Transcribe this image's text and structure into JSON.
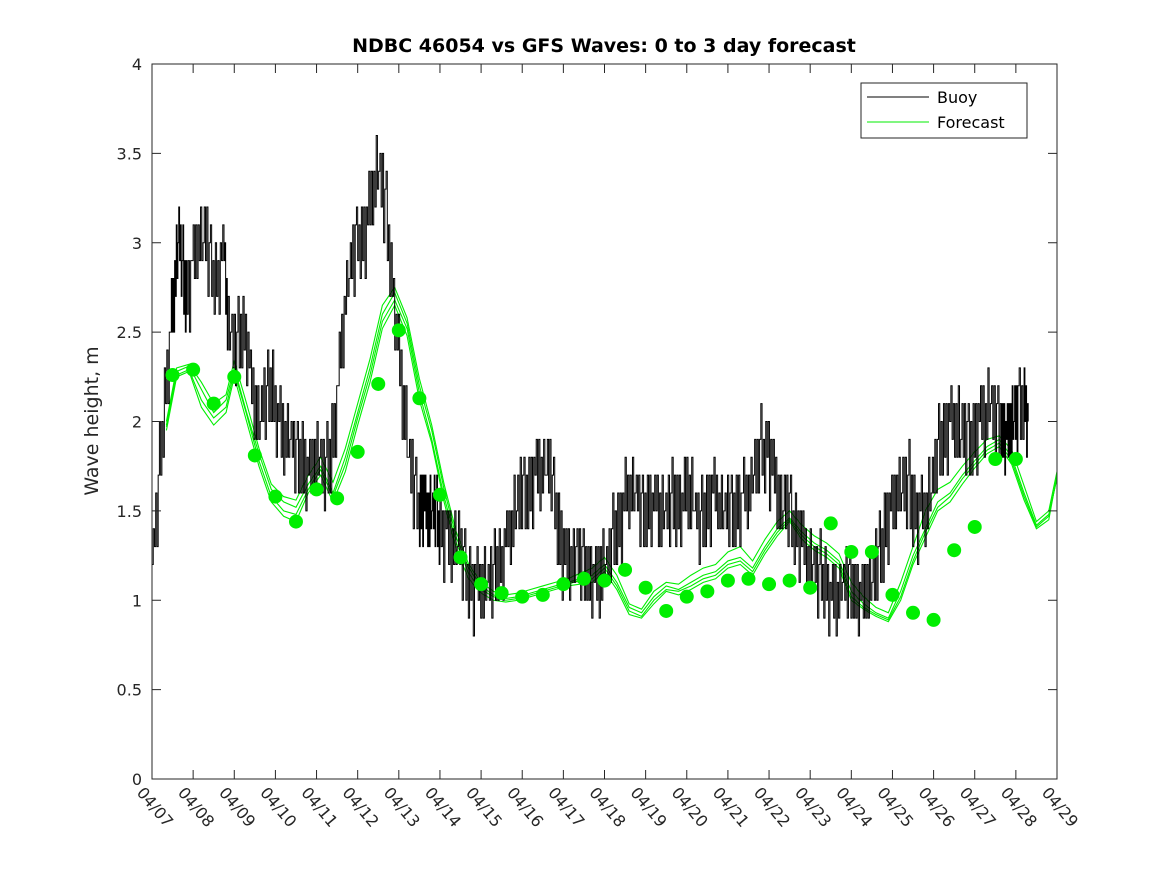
{
  "chart_data": {
    "type": "line",
    "title": "NDBC 46054 vs GFS Waves: 0 to 3 day forecast",
    "xlabel": "",
    "ylabel": "Wave height, m",
    "xlim": [
      0,
      22
    ],
    "ylim": [
      0,
      4
    ],
    "yticks": [
      0,
      0.5,
      1,
      1.5,
      2,
      2.5,
      3,
      3.5,
      4
    ],
    "ytick_labels": [
      "0",
      "0.5",
      "1",
      "1.5",
      "2",
      "2.5",
      "3",
      "3.5",
      "4"
    ],
    "xtick_labels": [
      "04/07",
      "04/08",
      "04/09",
      "04/10",
      "04/11",
      "04/12",
      "04/13",
      "04/14",
      "04/15",
      "04/16",
      "04/17",
      "04/18",
      "04/19",
      "04/20",
      "04/21",
      "04/22",
      "04/23",
      "04/24",
      "04/25",
      "04/26",
      "04/27",
      "04/28",
      "04/29"
    ],
    "grid": false,
    "legend": {
      "position": "top-right",
      "entries": [
        "Buoy",
        "Forecast"
      ]
    },
    "colors": {
      "buoy": "#000000",
      "forecast": "#00ee00",
      "axis": "#262626"
    },
    "buoy": {
      "name": "Buoy",
      "x": [
        0.0,
        0.15,
        0.3,
        0.45,
        0.55,
        0.65,
        0.75,
        0.85,
        1.0,
        1.15,
        1.3,
        1.45,
        1.6,
        1.75,
        1.85,
        2.0,
        2.15,
        2.3,
        2.45,
        2.6,
        2.75,
        2.9,
        3.05,
        3.2,
        3.35,
        3.5,
        3.65,
        3.8,
        3.95,
        4.1,
        4.25,
        4.4,
        4.55,
        4.7,
        4.85,
        5.0,
        5.15,
        5.3,
        5.45,
        5.6,
        5.75,
        5.9,
        6.05,
        6.2,
        6.35,
        6.5,
        6.6,
        6.7,
        6.8,
        6.9,
        7.0,
        7.15,
        7.3,
        7.45,
        7.6,
        7.75,
        7.9,
        8.05,
        8.2,
        8.35,
        8.5,
        8.65,
        8.8,
        8.95,
        9.1,
        9.25,
        9.4,
        9.55,
        9.7,
        9.85,
        10.0,
        10.15,
        10.3,
        10.45,
        10.6,
        10.75,
        10.9,
        11.05,
        11.2,
        11.35,
        11.5,
        11.65,
        11.8,
        11.95,
        12.1,
        12.25,
        12.4,
        12.55,
        12.7,
        12.85,
        13.0,
        13.15,
        13.3,
        13.45,
        13.6,
        13.75,
        13.9,
        14.05,
        14.2,
        14.35,
        14.5,
        14.65,
        14.8,
        14.95,
        15.1,
        15.25,
        15.4,
        15.55,
        15.7,
        15.85,
        16.0,
        16.15,
        16.3,
        16.45,
        16.6,
        16.75,
        16.9,
        17.05,
        17.2,
        17.35,
        17.5,
        17.65,
        17.8,
        17.95,
        18.1,
        18.25,
        18.4,
        18.55,
        18.7,
        18.85,
        19.0,
        19.15,
        19.3,
        19.45,
        19.6,
        19.75,
        19.9,
        20.05,
        20.2,
        20.35,
        20.5,
        20.65,
        20.75,
        20.85,
        20.95,
        21.05,
        21.2,
        21.3
      ],
      "values": [
        1.2,
        1.6,
        2.1,
        2.5,
        2.8,
        3.0,
        2.8,
        2.7,
        2.9,
        3.0,
        3.0,
        2.85,
        2.8,
        2.95,
        2.5,
        2.4,
        2.5,
        2.45,
        2.1,
        2.0,
        2.1,
        2.2,
        2.0,
        1.9,
        1.9,
        1.8,
        1.75,
        1.7,
        1.8,
        1.75,
        1.7,
        1.9,
        2.3,
        2.7,
        2.9,
        3.0,
        3.0,
        3.2,
        3.4,
        3.3,
        3.0,
        2.6,
        2.2,
        1.9,
        1.6,
        1.5,
        1.55,
        1.45,
        1.5,
        1.45,
        1.4,
        1.35,
        1.3,
        1.3,
        1.15,
        1.05,
        1.1,
        1.05,
        1.1,
        1.15,
        1.2,
        1.35,
        1.5,
        1.55,
        1.6,
        1.65,
        1.7,
        1.75,
        1.65,
        1.4,
        1.25,
        1.2,
        1.25,
        1.2,
        1.15,
        1.1,
        1.15,
        1.2,
        1.3,
        1.45,
        1.55,
        1.6,
        1.55,
        1.45,
        1.5,
        1.55,
        1.45,
        1.5,
        1.55,
        1.5,
        1.6,
        1.55,
        1.4,
        1.5,
        1.6,
        1.55,
        1.5,
        1.45,
        1.5,
        1.55,
        1.6,
        1.7,
        1.8,
        1.85,
        1.7,
        1.55,
        1.5,
        1.45,
        1.4,
        1.3,
        1.2,
        1.15,
        1.1,
        1.05,
        1.0,
        1.05,
        1.1,
        1.05,
        1.0,
        1.05,
        1.1,
        1.2,
        1.35,
        1.5,
        1.6,
        1.65,
        1.6,
        1.5,
        1.45,
        1.55,
        1.7,
        1.85,
        1.95,
        2.0,
        1.95,
        1.9,
        1.85,
        1.95,
        2.0,
        2.1,
        2.0,
        1.95,
        1.9,
        1.95,
        2.0,
        2.05,
        2.1,
        2.0
      ],
      "noise": [
        0,
        0.15,
        -0.1,
        0.2,
        -0.2,
        0.1,
        0.25,
        -0.15,
        0.1,
        -0.2,
        0.2,
        -0.1,
        0.15,
        -0.25,
        0.1,
        0,
        0.2,
        -0.1,
        0.15,
        -0.2,
        0.1,
        -0.15,
        0.2,
        -0.1
      ]
    },
    "forecast_runs": [
      {
        "name": "Forecast",
        "x": [
          0.35,
          0.6,
          0.9,
          1.2,
          1.5,
          1.8,
          2.0,
          2.3,
          2.6,
          2.9,
          3.2,
          3.5,
          3.8,
          4.1,
          4.4,
          4.7,
          5.0,
          5.3,
          5.6,
          5.9,
          6.2,
          6.5,
          6.8,
          7.1,
          7.4,
          7.7,
          8.0,
          8.3,
          8.6,
          8.9,
          9.2,
          9.5,
          9.8,
          10.1,
          10.4,
          10.7,
          11.0,
          11.3,
          11.6,
          11.9,
          12.2,
          12.5,
          12.8,
          13.1,
          13.4,
          13.7,
          14.0,
          14.3,
          14.6,
          14.9,
          15.2,
          15.5,
          15.8,
          16.1,
          16.4,
          16.7,
          17.0,
          17.3,
          17.6,
          17.9,
          18.2,
          18.5,
          18.8,
          19.1,
          19.4,
          19.7,
          20.0,
          20.3,
          20.6,
          20.9,
          21.2,
          21.5,
          21.8,
          22.0
        ],
        "values": [
          1.98,
          2.28,
          2.31,
          2.18,
          2.05,
          2.12,
          2.3,
          2.05,
          1.82,
          1.62,
          1.55,
          1.52,
          1.65,
          1.75,
          1.6,
          1.8,
          2.05,
          2.3,
          2.6,
          2.72,
          2.55,
          2.2,
          1.95,
          1.62,
          1.35,
          1.18,
          1.08,
          1.03,
          1.01,
          1.02,
          1.04,
          1.06,
          1.08,
          1.1,
          1.12,
          1.14,
          1.2,
          1.1,
          0.96,
          0.93,
          1.02,
          1.08,
          1.06,
          1.1,
          1.14,
          1.16,
          1.22,
          1.24,
          1.18,
          1.3,
          1.4,
          1.46,
          1.38,
          1.32,
          1.28,
          1.22,
          1.05,
          0.98,
          0.93,
          0.9,
          1.05,
          1.25,
          1.4,
          1.55,
          1.6,
          1.7,
          1.78,
          1.86,
          1.9,
          1.8,
          1.6,
          1.42,
          1.48,
          1.68
        ]
      },
      {
        "name": "Forecast",
        "x": [
          0.35,
          0.6,
          0.9,
          1.2,
          1.5,
          1.8,
          2.0,
          2.3,
          2.6,
          2.9,
          3.2,
          3.5,
          3.8,
          4.1,
          4.4,
          4.7,
          5.0,
          5.3,
          5.6,
          5.9,
          6.2,
          6.5,
          6.8,
          7.1,
          7.4,
          7.7,
          8.0,
          8.3,
          8.6,
          8.9,
          9.2,
          9.5,
          9.8,
          10.1,
          10.4,
          10.7,
          11.0,
          11.3,
          11.6,
          11.9,
          12.2,
          12.5,
          12.8,
          13.1,
          13.4,
          13.7,
          14.0,
          14.3,
          14.6,
          14.9,
          15.2,
          15.5,
          15.8,
          16.1,
          16.4,
          16.7,
          17.0,
          17.3,
          17.6,
          17.9,
          18.2,
          18.5,
          18.8,
          19.1,
          19.4,
          19.7,
          20.0,
          20.3,
          20.6,
          20.9,
          21.2,
          21.5,
          21.8,
          22.0
        ],
        "values": [
          1.95,
          2.25,
          2.28,
          2.08,
          1.98,
          2.05,
          2.25,
          2.0,
          1.75,
          1.55,
          1.47,
          1.44,
          1.6,
          1.7,
          1.55,
          1.72,
          1.98,
          2.22,
          2.52,
          2.65,
          2.48,
          2.12,
          1.88,
          1.55,
          1.28,
          1.12,
          1.04,
          1.0,
          0.99,
          1.0,
          1.02,
          1.04,
          1.06,
          1.08,
          1.09,
          1.1,
          1.16,
          1.06,
          0.92,
          0.9,
          0.98,
          1.05,
          1.03,
          1.06,
          1.1,
          1.12,
          1.18,
          1.2,
          1.14,
          1.26,
          1.36,
          1.44,
          1.34,
          1.28,
          1.24,
          1.18,
          1.0,
          0.95,
          0.91,
          0.88,
          1.0,
          1.2,
          1.35,
          1.5,
          1.55,
          1.65,
          1.74,
          1.82,
          1.86,
          1.76,
          1.56,
          1.4,
          1.45,
          1.7
        ]
      },
      {
        "name": "Forecast",
        "x": [
          0.35,
          0.6,
          0.9,
          1.2,
          1.5,
          1.8,
          2.0,
          2.3,
          2.6,
          2.9,
          3.2,
          3.5,
          3.8,
          4.1,
          4.4,
          4.7,
          5.0,
          5.3,
          5.6,
          5.9,
          6.2,
          6.5,
          6.8,
          7.1,
          7.4,
          7.7,
          8.0,
          8.3,
          8.6,
          8.9,
          9.2,
          9.5,
          9.8,
          10.1,
          10.4,
          10.7,
          11.0,
          11.3,
          11.6,
          11.9,
          12.2,
          12.5,
          12.8,
          13.1,
          13.4,
          13.7,
          14.0,
          14.3,
          14.6,
          14.9,
          15.2,
          15.5,
          15.8,
          16.1,
          16.4,
          16.7,
          17.0,
          17.3,
          17.6,
          17.9,
          18.2,
          18.5,
          18.8,
          19.1,
          19.4,
          19.7,
          20.0,
          20.3,
          20.6,
          20.9,
          21.2,
          21.5,
          21.8,
          22.0
        ],
        "values": [
          2.0,
          2.3,
          2.32,
          2.22,
          2.1,
          2.15,
          2.34,
          2.1,
          1.85,
          1.65,
          1.58,
          1.56,
          1.7,
          1.8,
          1.66,
          1.85,
          2.1,
          2.35,
          2.65,
          2.75,
          2.58,
          2.24,
          1.98,
          1.65,
          1.38,
          1.2,
          1.1,
          1.05,
          1.03,
          1.04,
          1.06,
          1.08,
          1.1,
          1.12,
          1.15,
          1.18,
          1.24,
          1.14,
          0.98,
          0.95,
          1.05,
          1.1,
          1.09,
          1.14,
          1.18,
          1.2,
          1.27,
          1.3,
          1.22,
          1.34,
          1.44,
          1.5,
          1.42,
          1.36,
          1.32,
          1.26,
          1.1,
          1.02,
          0.96,
          0.93,
          1.1,
          1.3,
          1.5,
          1.62,
          1.66,
          1.75,
          1.83,
          1.9,
          1.92,
          1.84,
          1.64,
          1.44,
          1.5,
          1.72
        ]
      },
      {
        "name": "Forecast",
        "x": [
          0.35,
          0.6,
          0.9,
          1.2,
          1.5,
          1.8,
          2.0,
          2.3,
          2.6,
          2.9,
          3.2,
          3.5,
          3.8,
          4.1,
          4.4,
          4.7,
          5.0,
          5.3,
          5.6,
          5.9,
          6.2,
          6.5,
          6.8,
          7.1,
          7.4,
          7.7,
          8.0,
          8.3,
          8.6,
          8.9,
          9.2,
          9.5,
          9.8,
          10.1,
          10.4,
          10.7,
          11.0,
          11.3,
          11.6,
          11.9,
          12.2,
          12.5,
          12.8,
          13.1,
          13.4,
          13.7,
          14.0,
          14.3,
          14.6,
          14.9,
          15.2,
          15.5,
          15.8,
          16.1,
          16.4,
          16.7,
          17.0,
          17.3,
          17.6,
          17.9,
          18.2,
          18.5,
          18.8,
          19.1,
          19.4,
          19.7,
          20.0,
          20.3,
          20.6,
          20.9,
          21.2,
          21.5,
          21.8,
          22.0
        ],
        "values": [
          1.97,
          2.26,
          2.29,
          2.12,
          2.02,
          2.08,
          2.28,
          2.04,
          1.78,
          1.58,
          1.5,
          1.48,
          1.62,
          1.73,
          1.58,
          1.76,
          2.02,
          2.26,
          2.56,
          2.68,
          2.52,
          2.16,
          1.9,
          1.58,
          1.32,
          1.15,
          1.06,
          1.02,
          1.0,
          1.01,
          1.03,
          1.05,
          1.07,
          1.09,
          1.11,
          1.12,
          1.18,
          1.08,
          0.94,
          0.91,
          1.0,
          1.06,
          1.05,
          1.08,
          1.12,
          1.14,
          1.2,
          1.22,
          1.16,
          1.28,
          1.38,
          1.45,
          1.36,
          1.3,
          1.26,
          1.2,
          1.02,
          0.96,
          0.92,
          0.89,
          1.02,
          1.22,
          1.38,
          1.52,
          1.58,
          1.68,
          1.76,
          1.84,
          1.88,
          1.78,
          1.58,
          1.41,
          1.47,
          1.69
        ]
      }
    ],
    "forecast_points": {
      "x": [
        0.5,
        1.0,
        1.5,
        2.0,
        2.5,
        3.0,
        3.5,
        4.0,
        4.5,
        5.0,
        5.5,
        6.0,
        6.5,
        7.0,
        7.5,
        8.0,
        8.5,
        9.0,
        9.5,
        10.0,
        10.5,
        11.0,
        11.5,
        12.0,
        12.5,
        13.0,
        13.5,
        14.0,
        14.5,
        15.0,
        15.5,
        16.0,
        16.5,
        17.0,
        17.5,
        18.0,
        18.5,
        19.0,
        19.5,
        20.0,
        20.5,
        21.0
      ],
      "values": [
        2.26,
        2.29,
        2.1,
        2.25,
        1.81,
        1.58,
        1.44,
        1.62,
        1.57,
        1.83,
        2.21,
        2.51,
        2.13,
        1.59,
        1.24,
        1.09,
        1.04,
        1.02,
        1.03,
        1.09,
        1.12,
        1.11,
        1.17,
        1.07,
        0.94,
        1.02,
        1.05,
        1.11,
        1.12,
        1.09,
        1.11,
        1.07,
        1.43,
        1.27,
        1.27,
        1.03,
        0.93,
        0.89,
        1.28,
        1.41,
        1.79,
        1.79
      ]
    }
  }
}
